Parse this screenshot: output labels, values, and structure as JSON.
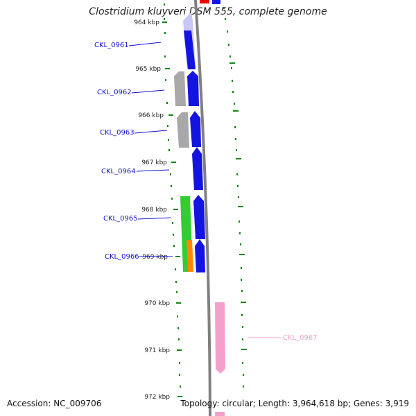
{
  "header": {
    "title": "Clostridium kluyveri DSM 555, complete genome"
  },
  "footer": {
    "accession": "Accession: NC_009706",
    "stats": "Topology: circular; Length: 3,964,618 bp; Genes: 3,919"
  },
  "scale": {
    "unit": "kbp",
    "ticks": [
      {
        "label": "964 kbp"
      },
      {
        "label": "965 kbp"
      },
      {
        "label": "966 kbp"
      },
      {
        "label": "967 kbp"
      },
      {
        "label": "968 kbp"
      },
      {
        "label": "969 kbp"
      },
      {
        "label": "970 kbp"
      },
      {
        "label": "971 kbp"
      },
      {
        "label": "972 kbp"
      }
    ]
  },
  "genes": [
    {
      "label": "CKL_0961",
      "color": "#1010cc"
    },
    {
      "label": "CKL_0962",
      "color": "#1010cc"
    },
    {
      "label": "CKL_0963",
      "color": "#1010cc"
    },
    {
      "label": "CKL_0964",
      "color": "#1010cc"
    },
    {
      "label": "CKL_0965",
      "color": "#1010cc"
    },
    {
      "label": "CKL_0966",
      "color": "#1010cc"
    },
    {
      "label": "CKL_0967",
      "color": "#f0a0c8"
    }
  ],
  "colors": {
    "blue": "#1414e0",
    "gray": "#a8a8a8",
    "green": "#33cc33",
    "orange": "#ff8800",
    "pink": "#f5a0cc",
    "red": "#ee0000",
    "backbone": "#808080",
    "tick": "#118811"
  }
}
